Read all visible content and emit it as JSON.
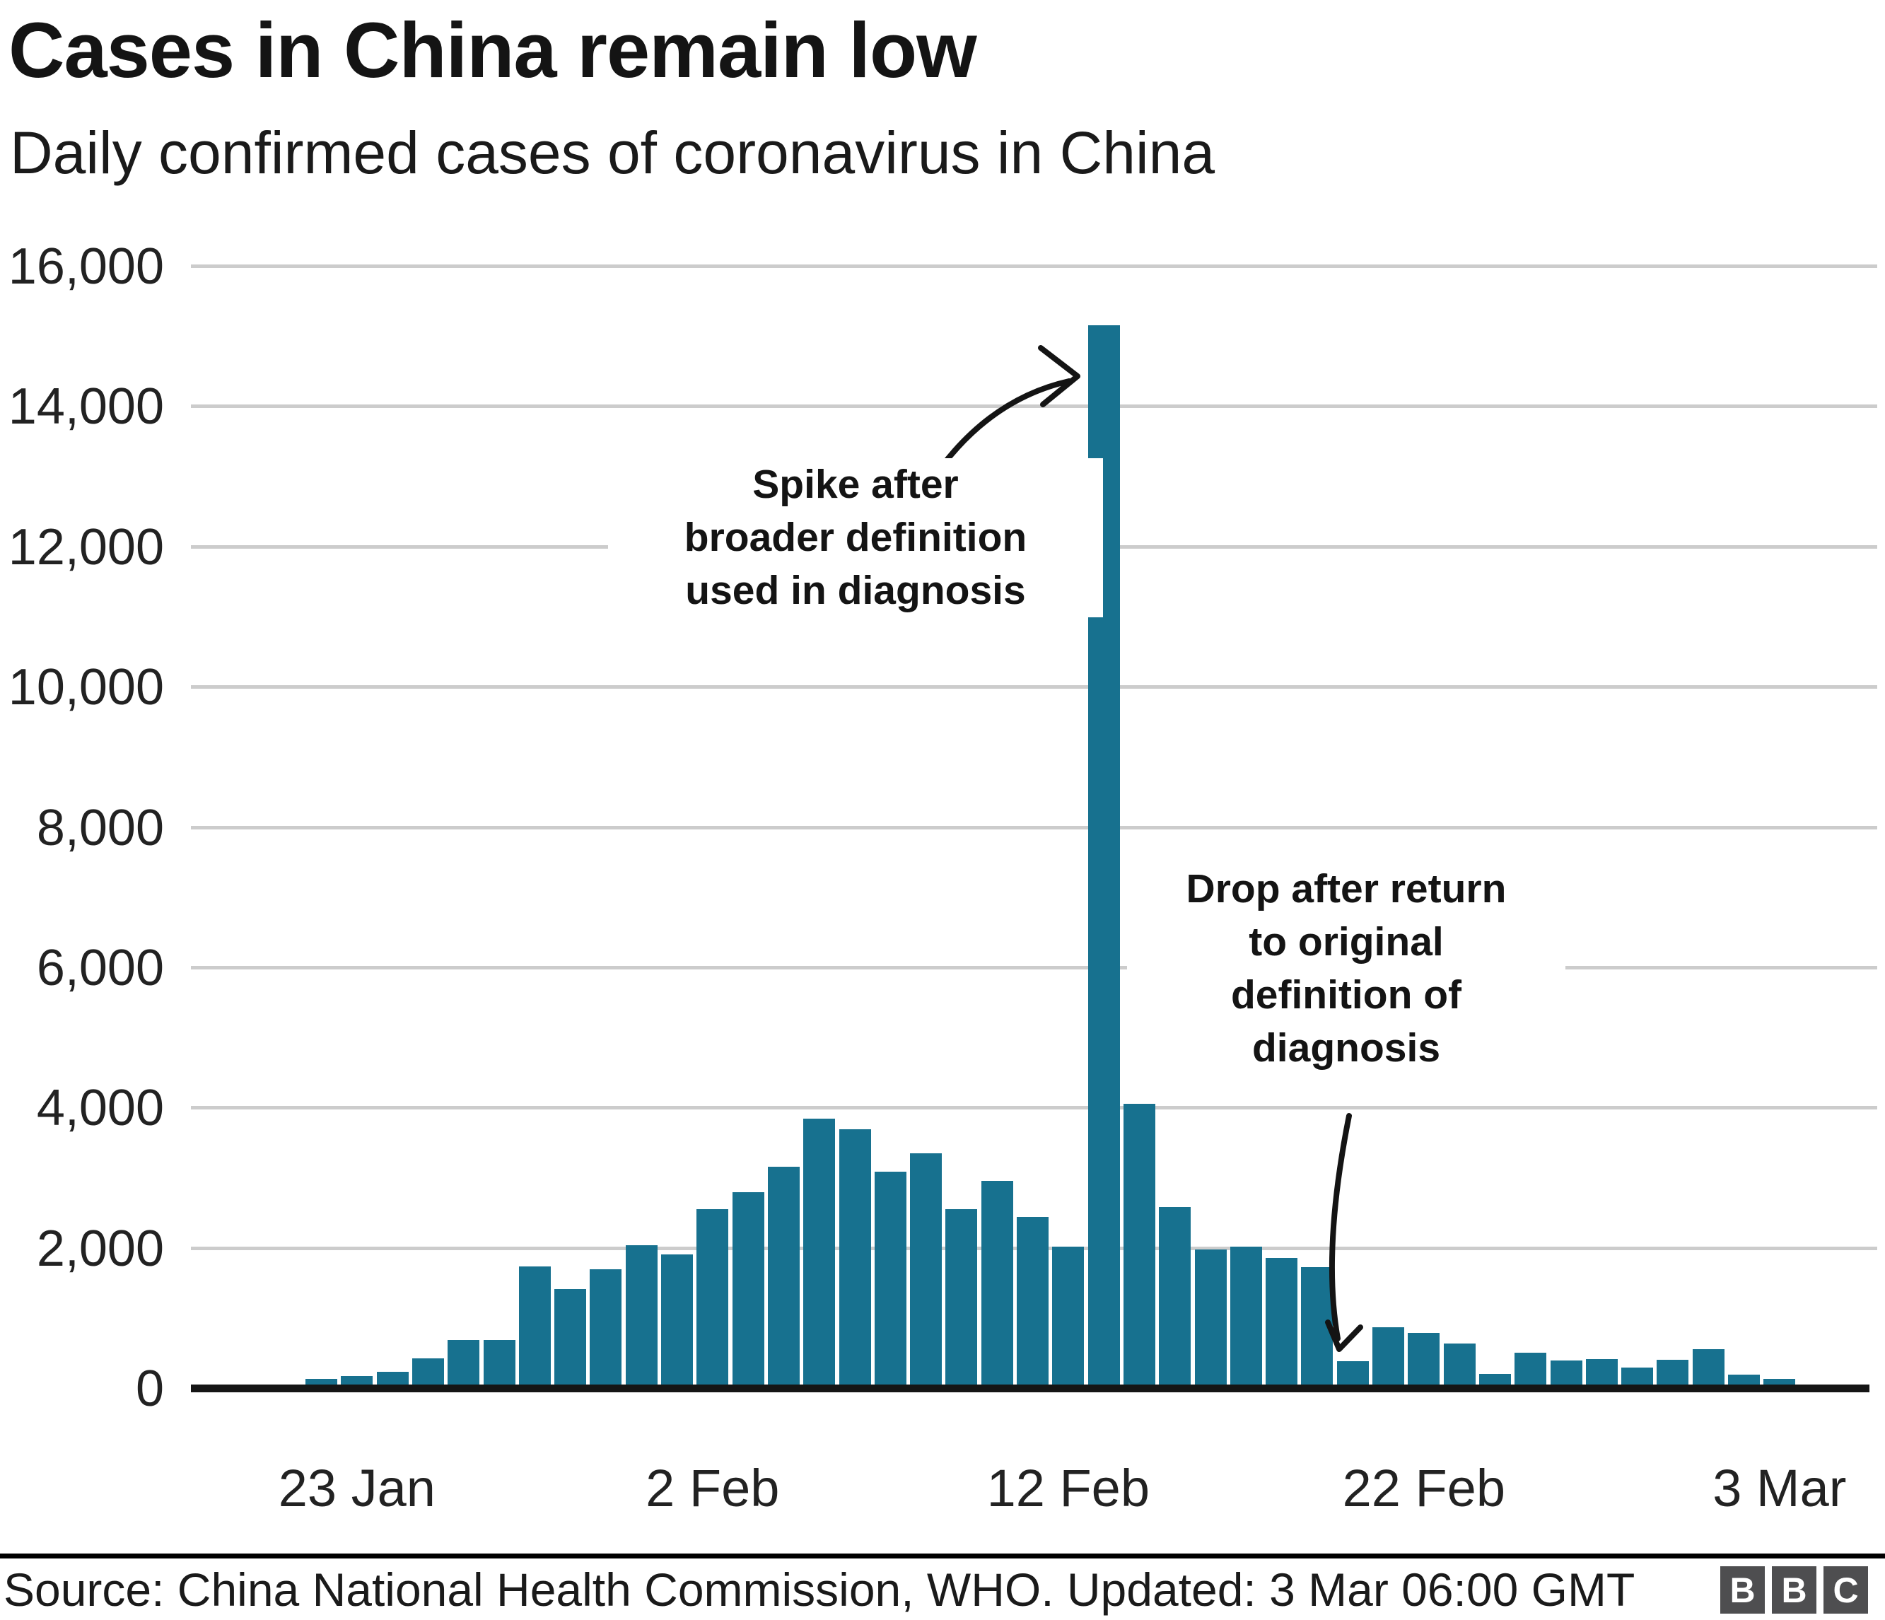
{
  "header": {
    "title": "Cases in China remain low",
    "subtitle": "Daily confirmed cases of coronavirus in China"
  },
  "chart_data": {
    "type": "bar",
    "title": "Cases in China remain low",
    "subtitle": "Daily confirmed cases of coronavirus in China",
    "x": [
      "22 Jan",
      "23 Jan",
      "24 Jan",
      "25 Jan",
      "26 Jan",
      "27 Jan",
      "28 Jan",
      "29 Jan",
      "30 Jan",
      "31 Jan",
      "1 Feb",
      "2 Feb",
      "3 Feb",
      "4 Feb",
      "5 Feb",
      "6 Feb",
      "7 Feb",
      "8 Feb",
      "9 Feb",
      "10 Feb",
      "11 Feb",
      "12 Feb",
      "13 Feb",
      "14 Feb",
      "15 Feb",
      "16 Feb",
      "17 Feb",
      "18 Feb",
      "19 Feb",
      "20 Feb",
      "21 Feb",
      "22 Feb",
      "23 Feb",
      "24 Feb",
      "25 Feb",
      "26 Feb",
      "27 Feb",
      "28 Feb",
      "29 Feb",
      "1 Mar",
      "2 Mar",
      "3 Mar"
    ],
    "values": [
      130,
      170,
      230,
      420,
      690,
      690,
      1730,
      1410,
      1690,
      2040,
      1910,
      2550,
      2790,
      3160,
      3840,
      3690,
      3090,
      3350,
      2550,
      2950,
      2440,
      2020,
      15152,
      4050,
      2580,
      1980,
      2020,
      1860,
      1720,
      380,
      870,
      790,
      640,
      200,
      500,
      390,
      410,
      290,
      400,
      550,
      190,
      130
    ],
    "bar_color": "#17718F",
    "ylim": [
      0,
      16000
    ],
    "ytick_step": 2000,
    "ytick_labels": [
      "0",
      "2,000",
      "4,000",
      "6,000",
      "8,000",
      "10,000",
      "12,000",
      "14,000",
      "16,000"
    ],
    "xtick_indices": [
      1,
      11,
      21,
      31,
      41
    ],
    "xtick_labels": [
      "23 Jan",
      "2 Feb",
      "12 Feb",
      "22 Feb",
      "3 Mar"
    ],
    "grid": true,
    "gridline_color": "#cccccc",
    "axis_color": "#151515",
    "legend": "none",
    "annotations": [
      {
        "id": "spike",
        "lines": [
          "Spike after",
          "broader definition",
          "used in diagnosis"
        ],
        "points_to": "13 Feb"
      },
      {
        "id": "drop",
        "lines": [
          "Drop after return",
          "to original",
          "definition of",
          "diagnosis"
        ],
        "points_to": "20 Feb"
      }
    ]
  },
  "footer": {
    "source": "Source: China National Health Commission, WHO. Updated: 3 Mar 06:00 GMT",
    "logo_letters": [
      "B",
      "B",
      "C"
    ]
  }
}
